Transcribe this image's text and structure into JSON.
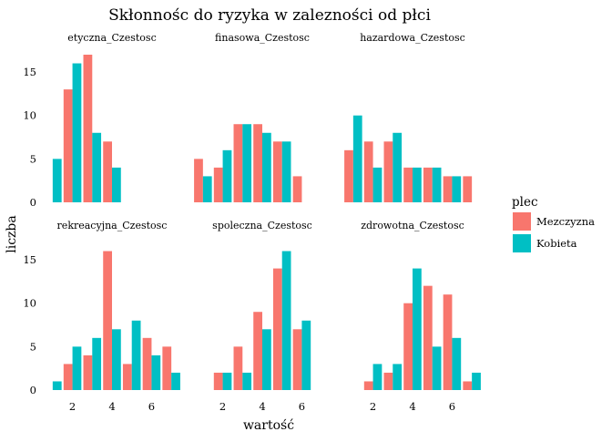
{
  "colors": {
    "Mezczyzna": "#F8766D",
    "Kobieta": "#00BFC4"
  },
  "chart_data": {
    "type": "bar",
    "title": "Skłonnośc do ryzyka w zalezności od płci",
    "xlabel": "wartość",
    "ylabel": "liczba",
    "x_categories": [
      1,
      2,
      3,
      4,
      5,
      6,
      7
    ],
    "xticks": [
      "2",
      "4",
      "6"
    ],
    "yticks": [
      "0",
      "5",
      "10",
      "15"
    ],
    "ylim": [
      0,
      17
    ],
    "legend": {
      "title": "plec",
      "position": "right",
      "entries": [
        "Mezczyzna",
        "Kobieta"
      ]
    },
    "facets": [
      {
        "name": "etyczna_Czestosc",
        "series": [
          {
            "name": "Mezczyzna",
            "values": [
              0,
              13,
              17,
              7,
              0,
              0,
              0
            ]
          },
          {
            "name": "Kobieta",
            "values": [
              5,
              16,
              8,
              4,
              0,
              0,
              0
            ]
          }
        ]
      },
      {
        "name": "finasowa_Czestosc",
        "series": [
          {
            "name": "Mezczyzna",
            "values": [
              5,
              4,
              9,
              9,
              7,
              3,
              0
            ]
          },
          {
            "name": "Kobieta",
            "values": [
              3,
              6,
              9,
              8,
              7,
              0,
              0
            ]
          }
        ]
      },
      {
        "name": "hazardowa_Czestosc",
        "series": [
          {
            "name": "Mezczyzna",
            "values": [
              6,
              7,
              7,
              4,
              4,
              3,
              3
            ]
          },
          {
            "name": "Kobieta",
            "values": [
              10,
              4,
              8,
              4,
              4,
              3,
              0
            ]
          }
        ]
      },
      {
        "name": "rekreacyjna_Czestosc",
        "series": [
          {
            "name": "Mezczyzna",
            "values": [
              0,
              3,
              4,
              16,
              3,
              6,
              5
            ]
          },
          {
            "name": "Kobieta",
            "values": [
              1,
              5,
              6,
              7,
              8,
              4,
              2
            ]
          }
        ]
      },
      {
        "name": "spoleczna_Czestosc",
        "series": [
          {
            "name": "Mezczyzna",
            "values": [
              0,
              2,
              5,
              9,
              14,
              7,
              0
            ]
          },
          {
            "name": "Kobieta",
            "values": [
              0,
              2,
              2,
              7,
              16,
              8,
              0
            ]
          }
        ]
      },
      {
        "name": "zdrowotna_Czestosc",
        "series": [
          {
            "name": "Mezczyzna",
            "values": [
              0,
              1,
              2,
              10,
              12,
              11,
              1
            ]
          },
          {
            "name": "Kobieta",
            "values": [
              0,
              3,
              3,
              14,
              5,
              6,
              2
            ]
          }
        ]
      }
    ]
  }
}
